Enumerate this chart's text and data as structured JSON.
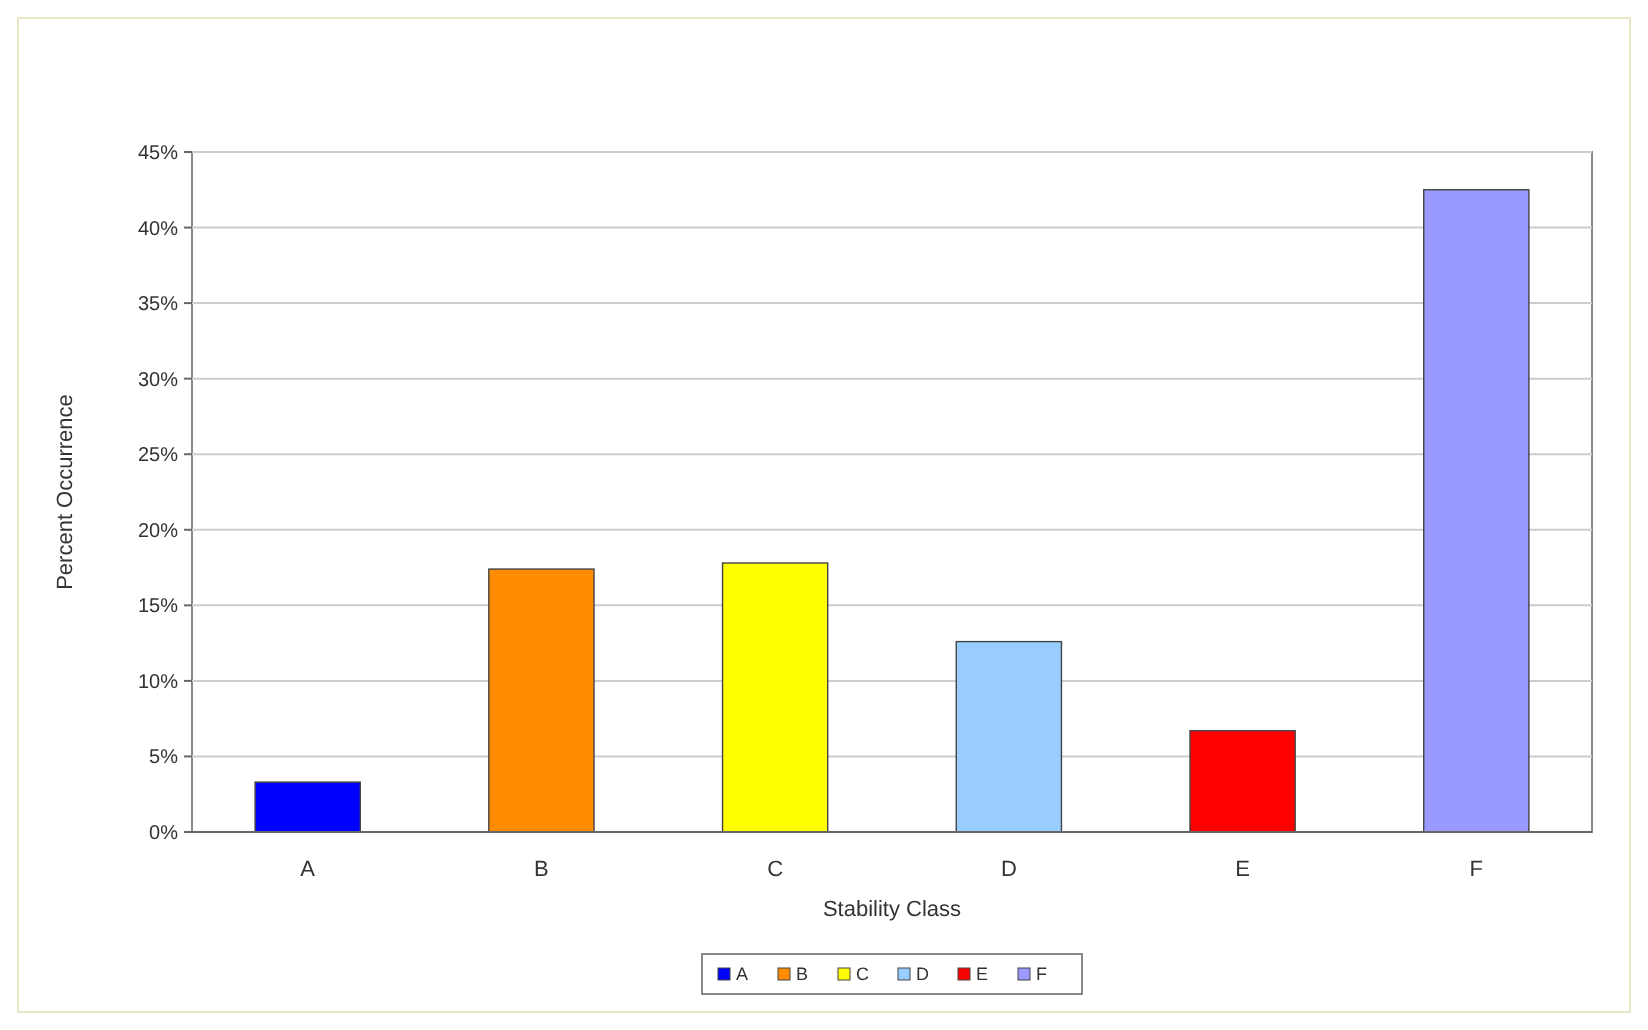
{
  "chart_data": {
    "type": "bar",
    "xlabel": "Stability Class",
    "ylabel": "Percent Occurrence",
    "categories": [
      "A",
      "B",
      "C",
      "D",
      "E",
      "F"
    ],
    "series": [
      {
        "name": "A",
        "color": "#0000ff",
        "values": [
          3.3,
          null,
          null,
          null,
          null,
          null
        ]
      },
      {
        "name": "B",
        "color": "#ff8c00",
        "values": [
          null,
          17.4,
          null,
          null,
          null,
          null
        ]
      },
      {
        "name": "C",
        "color": "#ffff00",
        "values": [
          null,
          null,
          17.8,
          null,
          null,
          null
        ]
      },
      {
        "name": "D",
        "color": "#99ccff",
        "values": [
          null,
          null,
          null,
          12.6,
          null,
          null
        ]
      },
      {
        "name": "E",
        "color": "#ff0000",
        "values": [
          null,
          null,
          null,
          null,
          6.7,
          null
        ]
      },
      {
        "name": "F",
        "color": "#9999ff",
        "values": [
          null,
          null,
          null,
          null,
          null,
          42.5
        ]
      }
    ],
    "stacked": true,
    "ylim": [
      0,
      45
    ],
    "yticks": [
      {
        "value": 0,
        "label": "0%"
      },
      {
        "value": 5,
        "label": "5%"
      },
      {
        "value": 10,
        "label": "10%"
      },
      {
        "value": 15,
        "label": "15%"
      },
      {
        "value": 20,
        "label": "20%"
      },
      {
        "value": 25,
        "label": "25%"
      },
      {
        "value": 30,
        "label": "30%"
      },
      {
        "value": 35,
        "label": "35%"
      },
      {
        "value": 40,
        "label": "40%"
      },
      {
        "value": 45,
        "label": "45%"
      }
    ],
    "grid": "y",
    "legend": "bottom"
  }
}
